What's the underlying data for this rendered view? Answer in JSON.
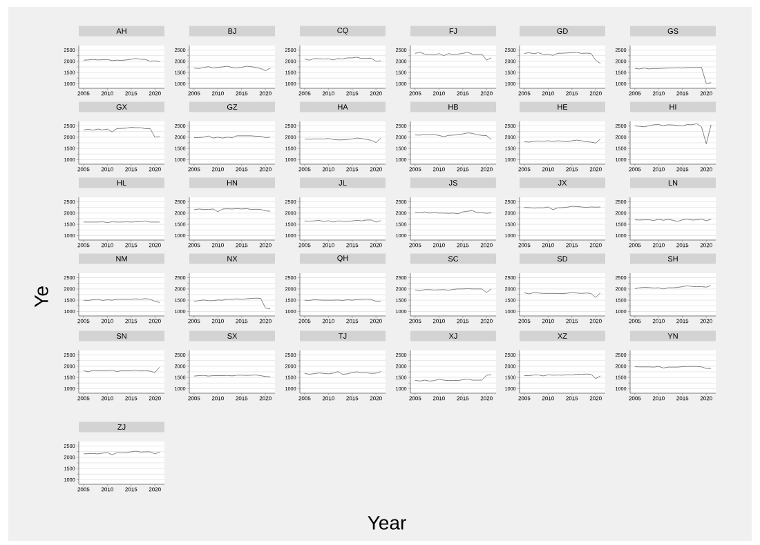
{
  "chart_data": [
    {
      "type": "line",
      "title": "AH",
      "grid": "y",
      "color": "#7f7f7f",
      "xlim": [
        2004,
        2022
      ],
      "xticks": [
        2005,
        2010,
        2015,
        2020
      ],
      "ylim": [
        800,
        2700
      ],
      "yticks": [
        1000,
        {
          "value": 1250,
          "label": null
        },
        1500,
        {
          "value": 1750,
          "label": null
        },
        2000,
        {
          "value": 2250,
          "label": null
        },
        2500
      ],
      "x": [
        2005,
        2006,
        2007,
        2008,
        2009,
        2010,
        2011,
        2012,
        2013,
        2014,
        2015,
        2016,
        2017,
        2018,
        2019,
        2020,
        2021
      ],
      "values": [
        2050,
        2060,
        2080,
        2060,
        2070,
        2080,
        2030,
        2050,
        2040,
        2060,
        2090,
        2120,
        2090,
        2080,
        2000,
        2020,
        1980
      ]
    },
    {
      "type": "line",
      "title": "BJ",
      "grid": "y",
      "color": "#7f7f7f",
      "xlim": [
        2004,
        2022
      ],
      "xticks": [
        2005,
        2010,
        2015,
        2020
      ],
      "ylim": [
        800,
        2700
      ],
      "yticks": [
        1000,
        {
          "value": 1250,
          "label": null
        },
        1500,
        {
          "value": 1750,
          "label": null
        },
        2000,
        {
          "value": 2250,
          "label": null
        },
        2500
      ],
      "x": [
        2005,
        2006,
        2007,
        2008,
        2009,
        2010,
        2011,
        2012,
        2013,
        2014,
        2015,
        2016,
        2017,
        2018,
        2019,
        2020,
        2021
      ],
      "values": [
        1700,
        1680,
        1720,
        1760,
        1700,
        1730,
        1750,
        1780,
        1720,
        1700,
        1730,
        1780,
        1760,
        1720,
        1680,
        1580,
        1700
      ]
    },
    {
      "type": "line",
      "title": "CQ",
      "grid": "y",
      "color": "#7f7f7f",
      "xlim": [
        2004,
        2022
      ],
      "xticks": [
        2005,
        2010,
        2015,
        2020
      ],
      "ylim": [
        800,
        2700
      ],
      "yticks": [
        1000,
        {
          "value": 1250,
          "label": null
        },
        1500,
        {
          "value": 1750,
          "label": null
        },
        2000,
        {
          "value": 2250,
          "label": null
        },
        2500
      ],
      "x": [
        2005,
        2006,
        2007,
        2008,
        2009,
        2010,
        2011,
        2012,
        2013,
        2014,
        2015,
        2016,
        2017,
        2018,
        2019,
        2020,
        2021
      ],
      "values": [
        2100,
        2050,
        2120,
        2110,
        2100,
        2110,
        2060,
        2120,
        2100,
        2150,
        2150,
        2180,
        2120,
        2130,
        2130,
        2000,
        2020
      ]
    },
    {
      "type": "line",
      "title": "FJ",
      "grid": "y",
      "color": "#7f7f7f",
      "xlim": [
        2004,
        2022
      ],
      "xticks": [
        2005,
        2010,
        2015,
        2020
      ],
      "ylim": [
        800,
        2700
      ],
      "yticks": [
        1000,
        {
          "value": 1250,
          "label": null
        },
        1500,
        {
          "value": 1750,
          "label": null
        },
        2000,
        {
          "value": 2250,
          "label": null
        },
        2500
      ],
      "x": [
        2005,
        2006,
        2007,
        2008,
        2009,
        2010,
        2011,
        2012,
        2013,
        2014,
        2015,
        2016,
        2017,
        2018,
        2019,
        2020,
        2021
      ],
      "values": [
        2350,
        2400,
        2320,
        2310,
        2280,
        2340,
        2250,
        2340,
        2300,
        2320,
        2350,
        2400,
        2320,
        2300,
        2320,
        2050,
        2150
      ]
    },
    {
      "type": "line",
      "title": "GD",
      "grid": "y",
      "color": "#7f7f7f",
      "xlim": [
        2004,
        2022
      ],
      "xticks": [
        2005,
        2010,
        2015,
        2020
      ],
      "ylim": [
        800,
        2700
      ],
      "yticks": [
        1000,
        {
          "value": 1250,
          "label": null
        },
        1500,
        {
          "value": 1750,
          "label": null
        },
        2000,
        {
          "value": 2250,
          "label": null
        },
        2500
      ],
      "x": [
        2005,
        2006,
        2007,
        2008,
        2009,
        2010,
        2011,
        2012,
        2013,
        2014,
        2015,
        2016,
        2017,
        2018,
        2019,
        2020,
        2021
      ],
      "values": [
        2350,
        2380,
        2340,
        2380,
        2300,
        2320,
        2260,
        2350,
        2360,
        2370,
        2380,
        2400,
        2350,
        2360,
        2350,
        2050,
        1900
      ]
    },
    {
      "type": "line",
      "title": "GS",
      "grid": "y",
      "color": "#7f7f7f",
      "xlim": [
        2004,
        2022
      ],
      "xticks": [
        2005,
        2010,
        2015,
        2020
      ],
      "ylim": [
        800,
        2700
      ],
      "yticks": [
        1000,
        {
          "value": 1250,
          "label": null
        },
        1500,
        {
          "value": 1750,
          "label": null
        },
        2000,
        {
          "value": 2250,
          "label": null
        },
        2500
      ],
      "x": [
        2005,
        2006,
        2007,
        2008,
        2009,
        2010,
        2011,
        2012,
        2013,
        2014,
        2015,
        2016,
        2017,
        2018,
        2019,
        2020,
        2021
      ],
      "values": [
        1680,
        1660,
        1700,
        1660,
        1680,
        1680,
        1690,
        1700,
        1700,
        1710,
        1700,
        1720,
        1720,
        1730,
        1730,
        1010,
        1050
      ]
    },
    {
      "type": "line",
      "title": "GX",
      "grid": "y",
      "color": "#7f7f7f",
      "xlim": [
        2004,
        2022
      ],
      "xticks": [
        2005,
        2010,
        2015,
        2020
      ],
      "ylim": [
        800,
        2700
      ],
      "yticks": [
        1000,
        {
          "value": 1250,
          "label": null
        },
        1500,
        {
          "value": 1750,
          "label": null
        },
        2000,
        {
          "value": 2250,
          "label": null
        },
        2500
      ],
      "x": [
        2005,
        2006,
        2007,
        2008,
        2009,
        2010,
        2011,
        2012,
        2013,
        2014,
        2015,
        2016,
        2017,
        2018,
        2019,
        2020,
        2021
      ],
      "values": [
        2320,
        2350,
        2310,
        2360,
        2320,
        2360,
        2230,
        2380,
        2390,
        2400,
        2440,
        2420,
        2420,
        2380,
        2380,
        2000,
        2020
      ]
    },
    {
      "type": "line",
      "title": "GZ",
      "grid": "y",
      "color": "#7f7f7f",
      "xlim": [
        2004,
        2022
      ],
      "xticks": [
        2005,
        2010,
        2015,
        2020
      ],
      "ylim": [
        800,
        2700
      ],
      "yticks": [
        1000,
        {
          "value": 1250,
          "label": null
        },
        1500,
        {
          "value": 1750,
          "label": null
        },
        2000,
        {
          "value": 2250,
          "label": null
        },
        2500
      ],
      "x": [
        2005,
        2006,
        2007,
        2008,
        2009,
        2010,
        2011,
        2012,
        2013,
        2014,
        2015,
        2016,
        2017,
        2018,
        2019,
        2020,
        2021
      ],
      "values": [
        1980,
        1980,
        2000,
        2050,
        1960,
        2000,
        1960,
        2000,
        1980,
        2060,
        2060,
        2060,
        2060,
        2040,
        2040,
        1980,
        2000
      ]
    },
    {
      "type": "line",
      "title": "HA",
      "grid": "y",
      "color": "#7f7f7f",
      "xlim": [
        2004,
        2022
      ],
      "xticks": [
        2005,
        2010,
        2015,
        2020
      ],
      "ylim": [
        800,
        2700
      ],
      "yticks": [
        1000,
        {
          "value": 1250,
          "label": null
        },
        1500,
        {
          "value": 1750,
          "label": null
        },
        2000,
        {
          "value": 2250,
          "label": null
        },
        2500
      ],
      "x": [
        2005,
        2006,
        2007,
        2008,
        2009,
        2010,
        2011,
        2012,
        2013,
        2014,
        2015,
        2016,
        2017,
        2018,
        2019,
        2020,
        2021
      ],
      "values": [
        1920,
        1910,
        1920,
        1920,
        1920,
        1940,
        1900,
        1880,
        1880,
        1900,
        1920,
        1960,
        1940,
        1900,
        1860,
        1760,
        1960
      ]
    },
    {
      "type": "line",
      "title": "HB",
      "grid": "y",
      "color": "#7f7f7f",
      "xlim": [
        2004,
        2022
      ],
      "xticks": [
        2005,
        2010,
        2015,
        2020
      ],
      "ylim": [
        800,
        2700
      ],
      "yticks": [
        1000,
        {
          "value": 1250,
          "label": null
        },
        1500,
        {
          "value": 1750,
          "label": null
        },
        2000,
        {
          "value": 2250,
          "label": null
        },
        2500
      ],
      "x": [
        2005,
        2006,
        2007,
        2008,
        2009,
        2010,
        2011,
        2012,
        2013,
        2014,
        2015,
        2016,
        2017,
        2018,
        2019,
        2020,
        2021
      ],
      "values": [
        2100,
        2090,
        2120,
        2110,
        2110,
        2080,
        2020,
        2080,
        2090,
        2110,
        2140,
        2190,
        2170,
        2110,
        2080,
        2070,
        1900
      ]
    },
    {
      "type": "line",
      "title": "HE",
      "grid": "y",
      "color": "#7f7f7f",
      "xlim": [
        2004,
        2022
      ],
      "xticks": [
        2005,
        2010,
        2015,
        2020
      ],
      "ylim": [
        800,
        2700
      ],
      "yticks": [
        1000,
        {
          "value": 1250,
          "label": null
        },
        1500,
        {
          "value": 1750,
          "label": null
        },
        2000,
        {
          "value": 2250,
          "label": null
        },
        2500
      ],
      "x": [
        2005,
        2006,
        2007,
        2008,
        2009,
        2010,
        2011,
        2012,
        2013,
        2014,
        2015,
        2016,
        2017,
        2018,
        2019,
        2020,
        2021
      ],
      "values": [
        1800,
        1780,
        1820,
        1830,
        1820,
        1840,
        1810,
        1840,
        1820,
        1800,
        1840,
        1870,
        1840,
        1800,
        1780,
        1740,
        1920
      ]
    },
    {
      "type": "line",
      "title": "HI",
      "grid": "y",
      "color": "#7f7f7f",
      "xlim": [
        2004,
        2022
      ],
      "xticks": [
        2005,
        2010,
        2015,
        2020
      ],
      "ylim": [
        800,
        2700
      ],
      "yticks": [
        1000,
        {
          "value": 1250,
          "label": null
        },
        1500,
        {
          "value": 1750,
          "label": null
        },
        2000,
        {
          "value": 2250,
          "label": null
        },
        2500
      ],
      "x": [
        2005,
        2006,
        2007,
        2008,
        2009,
        2010,
        2011,
        2012,
        2013,
        2014,
        2015,
        2016,
        2017,
        2018,
        2019,
        2020,
        2021
      ],
      "values": [
        2500,
        2480,
        2460,
        2510,
        2550,
        2560,
        2510,
        2550,
        2540,
        2520,
        2500,
        2560,
        2550,
        2600,
        2460,
        1700,
        2550
      ]
    },
    {
      "type": "line",
      "title": "HL",
      "grid": "y",
      "color": "#7f7f7f",
      "xlim": [
        2004,
        2022
      ],
      "xticks": [
        2005,
        2010,
        2015,
        2020
      ],
      "ylim": [
        800,
        2700
      ],
      "yticks": [
        1000,
        {
          "value": 1250,
          "label": null
        },
        1500,
        {
          "value": 1750,
          "label": null
        },
        2000,
        {
          "value": 2250,
          "label": null
        },
        2500
      ],
      "x": [
        2005,
        2006,
        2007,
        2008,
        2009,
        2010,
        2011,
        2012,
        2013,
        2014,
        2015,
        2016,
        2017,
        2018,
        2019,
        2020,
        2021
      ],
      "values": [
        1600,
        1600,
        1600,
        1600,
        1610,
        1580,
        1610,
        1600,
        1600,
        1610,
        1600,
        1610,
        1620,
        1650,
        1600,
        1600,
        1600
      ]
    },
    {
      "type": "line",
      "title": "HN",
      "grid": "y",
      "color": "#7f7f7f",
      "xlim": [
        2004,
        2022
      ],
      "xticks": [
        2005,
        2010,
        2015,
        2020
      ],
      "ylim": [
        800,
        2700
      ],
      "yticks": [
        1000,
        {
          "value": 1250,
          "label": null
        },
        1500,
        {
          "value": 1750,
          "label": null
        },
        2000,
        {
          "value": 2250,
          "label": null
        },
        2500
      ],
      "x": [
        2005,
        2006,
        2007,
        2008,
        2009,
        2010,
        2011,
        2012,
        2013,
        2014,
        2015,
        2016,
        2017,
        2018,
        2019,
        2020,
        2021
      ],
      "values": [
        2150,
        2180,
        2160,
        2160,
        2180,
        2060,
        2180,
        2190,
        2180,
        2200,
        2180,
        2200,
        2160,
        2170,
        2160,
        2100,
        2080
      ]
    },
    {
      "type": "line",
      "title": "JL",
      "grid": "y",
      "color": "#7f7f7f",
      "xlim": [
        2004,
        2022
      ],
      "xticks": [
        2005,
        2010,
        2015,
        2020
      ],
      "ylim": [
        800,
        2700
      ],
      "yticks": [
        1000,
        {
          "value": 1250,
          "label": null
        },
        1500,
        {
          "value": 1750,
          "label": null
        },
        2000,
        {
          "value": 2250,
          "label": null
        },
        2500
      ],
      "x": [
        2005,
        2006,
        2007,
        2008,
        2009,
        2010,
        2011,
        2012,
        2013,
        2014,
        2015,
        2016,
        2017,
        2018,
        2019,
        2020,
        2021
      ],
      "values": [
        1650,
        1640,
        1650,
        1680,
        1620,
        1660,
        1600,
        1650,
        1640,
        1630,
        1650,
        1680,
        1650,
        1690,
        1690,
        1600,
        1660
      ]
    },
    {
      "type": "line",
      "title": "JS",
      "grid": "y",
      "color": "#7f7f7f",
      "xlim": [
        2004,
        2022
      ],
      "xticks": [
        2005,
        2010,
        2015,
        2020
      ],
      "ylim": [
        800,
        2700
      ],
      "yticks": [
        1000,
        {
          "value": 1250,
          "label": null
        },
        1500,
        {
          "value": 1750,
          "label": null
        },
        2000,
        {
          "value": 2250,
          "label": null
        },
        2500
      ],
      "x": [
        2005,
        2006,
        2007,
        2008,
        2009,
        2010,
        2011,
        2012,
        2013,
        2014,
        2015,
        2016,
        2017,
        2018,
        2019,
        2020,
        2021
      ],
      "values": [
        2020,
        2010,
        2050,
        2000,
        2020,
        2000,
        2000,
        1990,
        2000,
        1970,
        2050,
        2080,
        2110,
        2020,
        2020,
        1990,
        2010
      ]
    },
    {
      "type": "line",
      "title": "JX",
      "grid": "y",
      "color": "#7f7f7f",
      "xlim": [
        2004,
        2022
      ],
      "xticks": [
        2005,
        2010,
        2015,
        2020
      ],
      "ylim": [
        800,
        2700
      ],
      "yticks": [
        1000,
        {
          "value": 1250,
          "label": null
        },
        1500,
        {
          "value": 1750,
          "label": null
        },
        2000,
        {
          "value": 2250,
          "label": null
        },
        2500
      ],
      "x": [
        2005,
        2006,
        2007,
        2008,
        2009,
        2010,
        2011,
        2012,
        2013,
        2014,
        2015,
        2016,
        2017,
        2018,
        2019,
        2020,
        2021
      ],
      "values": [
        2250,
        2240,
        2220,
        2230,
        2230,
        2270,
        2150,
        2230,
        2240,
        2260,
        2300,
        2290,
        2270,
        2250,
        2270,
        2260,
        2270
      ]
    },
    {
      "type": "line",
      "title": "LN",
      "grid": "y",
      "color": "#7f7f7f",
      "xlim": [
        2004,
        2022
      ],
      "xticks": [
        2005,
        2010,
        2015,
        2020
      ],
      "ylim": [
        800,
        2700
      ],
      "yticks": [
        1000,
        {
          "value": 1250,
          "label": null
        },
        1500,
        {
          "value": 1750,
          "label": null
        },
        2000,
        {
          "value": 2250,
          "label": null
        },
        2500
      ],
      "x": [
        2005,
        2006,
        2007,
        2008,
        2009,
        2010,
        2011,
        2012,
        2013,
        2014,
        2015,
        2016,
        2017,
        2018,
        2019,
        2020,
        2021
      ],
      "values": [
        1700,
        1690,
        1700,
        1700,
        1670,
        1720,
        1680,
        1720,
        1680,
        1630,
        1700,
        1730,
        1690,
        1700,
        1730,
        1660,
        1720
      ]
    },
    {
      "type": "line",
      "title": "NM",
      "ylabel": "Ye",
      "grid": "y",
      "color": "#7f7f7f",
      "xlim": [
        2004,
        2022
      ],
      "xticks": [
        2005,
        2010,
        2015,
        2020
      ],
      "ylim": [
        800,
        2700
      ],
      "yticks": [
        1000,
        {
          "value": 1250,
          "label": null
        },
        1500,
        {
          "value": 1750,
          "label": null
        },
        2000,
        {
          "value": 2250,
          "label": null
        },
        2500
      ],
      "x": [
        2005,
        2006,
        2007,
        2008,
        2009,
        2010,
        2011,
        2012,
        2013,
        2014,
        2015,
        2016,
        2017,
        2018,
        2019,
        2020,
        2021
      ],
      "values": [
        1500,
        1490,
        1520,
        1540,
        1490,
        1520,
        1500,
        1540,
        1540,
        1540,
        1540,
        1560,
        1540,
        1570,
        1540,
        1450,
        1400
      ]
    },
    {
      "type": "line",
      "title": "NX",
      "grid": "y",
      "color": "#7f7f7f",
      "xlim": [
        2004,
        2022
      ],
      "xticks": [
        2005,
        2010,
        2015,
        2020
      ],
      "ylim": [
        800,
        2700
      ],
      "yticks": [
        1000,
        {
          "value": 1250,
          "label": null
        },
        1500,
        {
          "value": 1750,
          "label": null
        },
        2000,
        {
          "value": 2250,
          "label": null
        },
        2500
      ],
      "x": [
        2005,
        2006,
        2007,
        2008,
        2009,
        2010,
        2011,
        2012,
        2013,
        2014,
        2015,
        2016,
        2017,
        2018,
        2019,
        2020,
        2021
      ],
      "values": [
        1450,
        1480,
        1510,
        1480,
        1480,
        1510,
        1500,
        1540,
        1540,
        1560,
        1540,
        1560,
        1580,
        1590,
        1580,
        1150,
        1120
      ]
    },
    {
      "type": "line",
      "title": "QH",
      "grid": "y",
      "color": "#7f7f7f",
      "xlim": [
        2004,
        2022
      ],
      "xticks": [
        2005,
        2010,
        2015,
        2020
      ],
      "ylim": [
        800,
        2700
      ],
      "yticks": [
        1000,
        {
          "value": 1250,
          "label": null
        },
        1500,
        {
          "value": 1750,
          "label": null
        },
        2000,
        {
          "value": 2250,
          "label": null
        },
        2500
      ],
      "x": [
        2005,
        2006,
        2007,
        2008,
        2009,
        2010,
        2011,
        2012,
        2013,
        2014,
        2015,
        2016,
        2017,
        2018,
        2019,
        2020,
        2021
      ],
      "values": [
        1500,
        1490,
        1520,
        1510,
        1500,
        1500,
        1500,
        1510,
        1490,
        1520,
        1500,
        1530,
        1540,
        1550,
        1530,
        1450,
        1450
      ]
    },
    {
      "type": "line",
      "title": "SC",
      "grid": "y",
      "color": "#7f7f7f",
      "xlim": [
        2004,
        2022
      ],
      "xticks": [
        2005,
        2010,
        2015,
        2020
      ],
      "ylim": [
        800,
        2700
      ],
      "yticks": [
        1000,
        {
          "value": 1250,
          "label": null
        },
        1500,
        {
          "value": 1750,
          "label": null
        },
        2000,
        {
          "value": 2250,
          "label": null
        },
        2500
      ],
      "x": [
        2005,
        2006,
        2007,
        2008,
        2009,
        2010,
        2011,
        2012,
        2013,
        2014,
        2015,
        2016,
        2017,
        2018,
        2019,
        2020,
        2021
      ],
      "values": [
        1960,
        1920,
        1970,
        1970,
        1950,
        1960,
        1970,
        1940,
        1980,
        2000,
        2000,
        2010,
        2000,
        2000,
        2000,
        1840,
        2000
      ]
    },
    {
      "type": "line",
      "title": "SD",
      "grid": "y",
      "color": "#7f7f7f",
      "xlim": [
        2004,
        2022
      ],
      "xticks": [
        2005,
        2010,
        2015,
        2020
      ],
      "ylim": [
        800,
        2700
      ],
      "yticks": [
        1000,
        {
          "value": 1250,
          "label": null
        },
        1500,
        {
          "value": 1750,
          "label": null
        },
        2000,
        {
          "value": 2250,
          "label": null
        },
        2500
      ],
      "x": [
        2005,
        2006,
        2007,
        2008,
        2009,
        2010,
        2011,
        2012,
        2013,
        2014,
        2015,
        2016,
        2017,
        2018,
        2019,
        2020,
        2021
      ],
      "values": [
        1830,
        1780,
        1840,
        1820,
        1800,
        1800,
        1800,
        1800,
        1790,
        1810,
        1840,
        1820,
        1800,
        1820,
        1800,
        1620,
        1830
      ]
    },
    {
      "type": "line",
      "title": "SH",
      "grid": "y",
      "color": "#7f7f7f",
      "xlim": [
        2004,
        2022
      ],
      "xticks": [
        2005,
        2010,
        2015,
        2020
      ],
      "ylim": [
        800,
        2700
      ],
      "yticks": [
        1000,
        {
          "value": 1250,
          "label": null
        },
        1500,
        {
          "value": 1750,
          "label": null
        },
        2000,
        {
          "value": 2250,
          "label": null
        },
        2500
      ],
      "x": [
        2005,
        2006,
        2007,
        2008,
        2009,
        2010,
        2011,
        2012,
        2013,
        2014,
        2015,
        2016,
        2017,
        2018,
        2019,
        2020,
        2021
      ],
      "values": [
        2010,
        2050,
        2070,
        2060,
        2040,
        2050,
        2000,
        2050,
        2050,
        2070,
        2100,
        2140,
        2110,
        2100,
        2100,
        2080,
        2150
      ]
    },
    {
      "type": "line",
      "title": "SN",
      "grid": "y",
      "color": "#7f7f7f",
      "xlim": [
        2004,
        2022
      ],
      "xticks": [
        2005,
        2010,
        2015,
        2020
      ],
      "ylim": [
        800,
        2700
      ],
      "yticks": [
        1000,
        {
          "value": 1250,
          "label": null
        },
        1500,
        {
          "value": 1750,
          "label": null
        },
        2000,
        {
          "value": 2250,
          "label": null
        },
        2500
      ],
      "x": [
        2005,
        2006,
        2007,
        2008,
        2009,
        2010,
        2011,
        2012,
        2013,
        2014,
        2015,
        2016,
        2017,
        2018,
        2019,
        2020,
        2021
      ],
      "values": [
        1800,
        1750,
        1820,
        1800,
        1800,
        1810,
        1830,
        1760,
        1800,
        1800,
        1800,
        1830,
        1790,
        1800,
        1780,
        1720,
        1960
      ]
    },
    {
      "type": "line",
      "title": "SX",
      "grid": "y",
      "color": "#7f7f7f",
      "xlim": [
        2004,
        2022
      ],
      "xticks": [
        2005,
        2010,
        2015,
        2020
      ],
      "ylim": [
        800,
        2700
      ],
      "yticks": [
        1000,
        {
          "value": 1250,
          "label": null
        },
        1500,
        {
          "value": 1750,
          "label": null
        },
        2000,
        {
          "value": 2250,
          "label": null
        },
        2500
      ],
      "x": [
        2005,
        2006,
        2007,
        2008,
        2009,
        2010,
        2011,
        2012,
        2013,
        2014,
        2015,
        2016,
        2017,
        2018,
        2019,
        2020,
        2021
      ],
      "values": [
        1560,
        1580,
        1590,
        1560,
        1580,
        1580,
        1580,
        1590,
        1570,
        1600,
        1600,
        1590,
        1600,
        1610,
        1580,
        1540,
        1530
      ]
    },
    {
      "type": "line",
      "title": "TJ",
      "grid": "y",
      "color": "#7f7f7f",
      "xlim": [
        2004,
        2022
      ],
      "xticks": [
        2005,
        2010,
        2015,
        2020
      ],
      "ylim": [
        800,
        2700
      ],
      "yticks": [
        1000,
        {
          "value": 1250,
          "label": null
        },
        1500,
        {
          "value": 1750,
          "label": null
        },
        2000,
        {
          "value": 2250,
          "label": null
        },
        2500
      ],
      "x": [
        2005,
        2006,
        2007,
        2008,
        2009,
        2010,
        2011,
        2012,
        2013,
        2014,
        2015,
        2016,
        2017,
        2018,
        2019,
        2020,
        2021
      ],
      "values": [
        1680,
        1640,
        1670,
        1700,
        1680,
        1660,
        1690,
        1760,
        1640,
        1660,
        1720,
        1750,
        1700,
        1710,
        1680,
        1690,
        1760
      ]
    },
    {
      "type": "line",
      "title": "XJ",
      "xlabel": "Year",
      "grid": "y",
      "color": "#7f7f7f",
      "xlim": [
        2004,
        2022
      ],
      "xticks": [
        2005,
        2010,
        2015,
        2020
      ],
      "ylim": [
        800,
        2700
      ],
      "yticks": [
        1000,
        {
          "value": 1250,
          "label": null
        },
        1500,
        {
          "value": 1750,
          "label": null
        },
        2000,
        {
          "value": 2250,
          "label": null
        },
        2500
      ],
      "x": [
        2005,
        2006,
        2007,
        2008,
        2009,
        2010,
        2011,
        2012,
        2013,
        2014,
        2015,
        2016,
        2017,
        2018,
        2019,
        2020,
        2021
      ],
      "values": [
        1370,
        1340,
        1380,
        1340,
        1360,
        1420,
        1380,
        1360,
        1370,
        1360,
        1400,
        1430,
        1380,
        1380,
        1380,
        1600,
        1620
      ]
    },
    {
      "type": "line",
      "title": "XZ",
      "grid": "y",
      "color": "#7f7f7f",
      "xlim": [
        2004,
        2022
      ],
      "xticks": [
        2005,
        2010,
        2015,
        2020
      ],
      "ylim": [
        800,
        2700
      ],
      "yticks": [
        1000,
        {
          "value": 1250,
          "label": null
        },
        1500,
        {
          "value": 1750,
          "label": null
        },
        2000,
        {
          "value": 2250,
          "label": null
        },
        2500
      ],
      "x": [
        2005,
        2006,
        2007,
        2008,
        2009,
        2010,
        2011,
        2012,
        2013,
        2014,
        2015,
        2016,
        2017,
        2018,
        2019,
        2020,
        2021
      ],
      "values": [
        1580,
        1580,
        1610,
        1610,
        1570,
        1620,
        1600,
        1610,
        1600,
        1620,
        1610,
        1640,
        1640,
        1650,
        1640,
        1450,
        1570
      ]
    },
    {
      "type": "line",
      "title": "YN",
      "grid": "y",
      "color": "#7f7f7f",
      "xlim": [
        2004,
        2022
      ],
      "xticks": [
        2005,
        2010,
        2015,
        2020
      ],
      "ylim": [
        800,
        2700
      ],
      "yticks": [
        1000,
        {
          "value": 1250,
          "label": null
        },
        1500,
        {
          "value": 1750,
          "label": null
        },
        2000,
        {
          "value": 2250,
          "label": null
        },
        2500
      ],
      "x": [
        2005,
        2006,
        2007,
        2008,
        2009,
        2010,
        2011,
        2012,
        2013,
        2014,
        2015,
        2016,
        2017,
        2018,
        2019,
        2020,
        2021
      ],
      "values": [
        1980,
        1970,
        1970,
        1970,
        1960,
        1990,
        1920,
        1960,
        1960,
        1960,
        1980,
        1990,
        1990,
        1990,
        1970,
        1900,
        1900
      ]
    },
    {
      "type": "line",
      "title": "ZJ",
      "grid": "y",
      "color": "#7f7f7f",
      "xlim": [
        2004,
        2022
      ],
      "xticks": [
        2005,
        2010,
        2015,
        2020
      ],
      "ylim": [
        800,
        2700
      ],
      "yticks": [
        1000,
        {
          "value": 1250,
          "label": null
        },
        1500,
        {
          "value": 1750,
          "label": null
        },
        2000,
        {
          "value": 2250,
          "label": null
        },
        2500
      ],
      "x": [
        2005,
        2006,
        2007,
        2008,
        2009,
        2010,
        2011,
        2012,
        2013,
        2014,
        2015,
        2016,
        2017,
        2018,
        2019,
        2020,
        2021
      ],
      "values": [
        2150,
        2160,
        2170,
        2150,
        2180,
        2210,
        2110,
        2200,
        2190,
        2210,
        2240,
        2270,
        2230,
        2240,
        2240,
        2150,
        2230
      ]
    }
  ]
}
